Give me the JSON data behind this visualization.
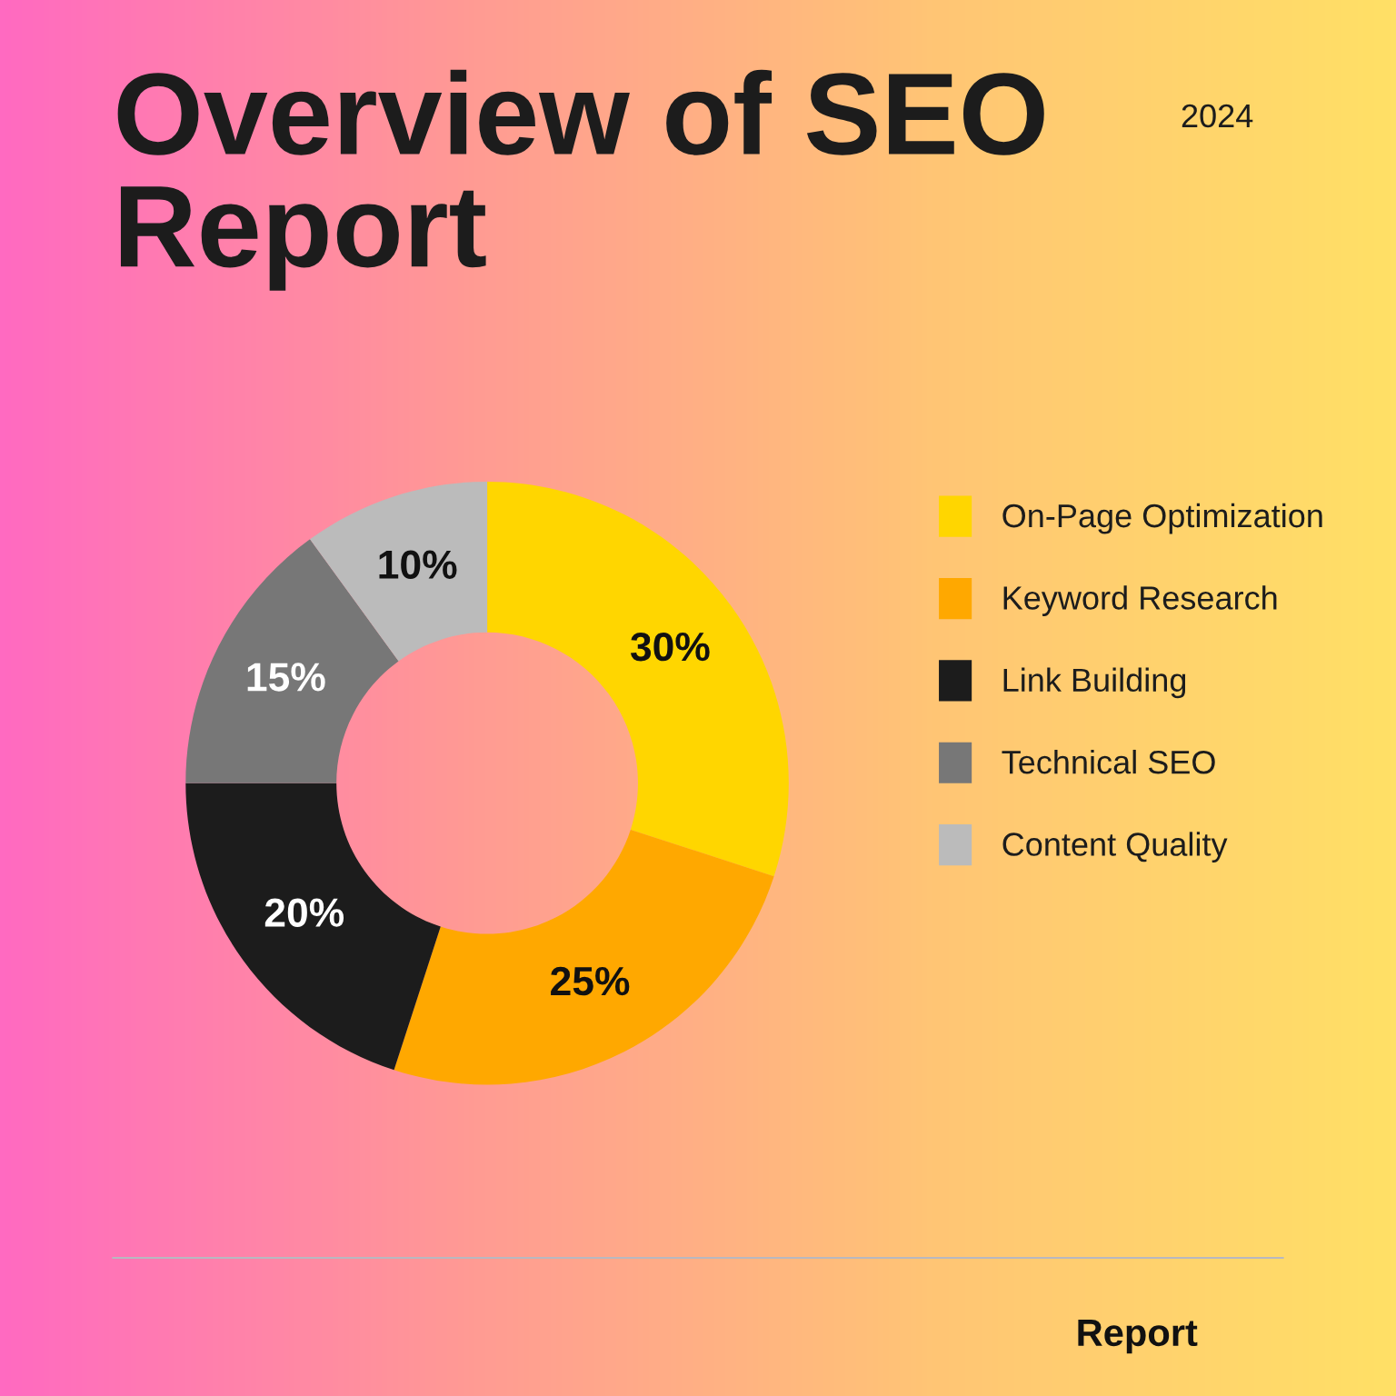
{
  "chart_data": {
    "type": "donut",
    "title": "Overview of SEO Report",
    "subtitle": "2024",
    "categories": [
      "On-Page Optimization",
      "Keyword Research",
      "Link Building",
      "Technical SEO",
      "Content Quality"
    ],
    "values": [
      30,
      25,
      20,
      15,
      10
    ],
    "colors": [
      "#ffd600",
      "#ffa800",
      "#1c1c1c",
      "#777777",
      "#bbbbbb"
    ],
    "value_labels": [
      "30%",
      "25%",
      "20%",
      "15%",
      "10%"
    ],
    "legend": "right",
    "annotations": [
      "Report"
    ]
  }
}
